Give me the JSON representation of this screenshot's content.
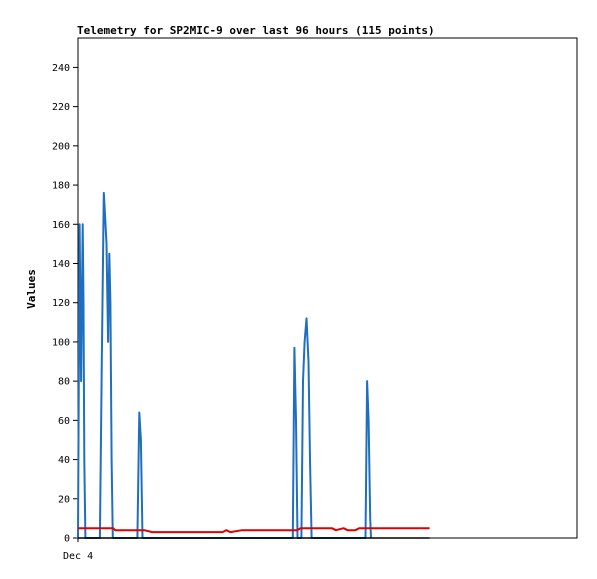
{
  "chart_data": {
    "type": "line",
    "title": "Telemetry for SP2MIC-9 over last 96 hours (115 points)",
    "ylabel": "Values",
    "xlabel": "",
    "x_tick_labels": [
      "Dec 4"
    ],
    "ylim": [
      0,
      255
    ],
    "y_ticks": [
      0,
      20,
      40,
      60,
      80,
      100,
      120,
      140,
      160,
      180,
      200,
      220,
      240
    ],
    "xlim": [
      0,
      96
    ],
    "x_unit": "hours",
    "grid": false,
    "legend": "none",
    "series": [
      {
        "color": "#1f6fc0",
        "points": [
          [
            0.0,
            0
          ],
          [
            0.4,
            160
          ],
          [
            0.8,
            80
          ],
          [
            1.2,
            160
          ],
          [
            1.4,
            120
          ],
          [
            1.6,
            40
          ],
          [
            1.9,
            0
          ],
          [
            5.6,
            0
          ],
          [
            6.1,
            90
          ],
          [
            6.6,
            176
          ],
          [
            6.9,
            165
          ],
          [
            7.3,
            150
          ],
          [
            7.7,
            100
          ],
          [
            8.0,
            145
          ],
          [
            8.3,
            120
          ],
          [
            8.6,
            40
          ],
          [
            8.9,
            0
          ],
          [
            15.2,
            0
          ],
          [
            15.7,
            64
          ],
          [
            16.1,
            50
          ],
          [
            16.5,
            0
          ],
          [
            55.0,
            0
          ],
          [
            55.4,
            97
          ],
          [
            55.8,
            60
          ],
          [
            56.2,
            0
          ],
          [
            57.2,
            0
          ],
          [
            57.6,
            80
          ],
          [
            58.0,
            100
          ],
          [
            58.5,
            112
          ],
          [
            59.0,
            90
          ],
          [
            59.4,
            40
          ],
          [
            59.8,
            0
          ],
          [
            73.6,
            0
          ],
          [
            74.0,
            80
          ],
          [
            74.4,
            60
          ],
          [
            74.8,
            10
          ],
          [
            75.0,
            0
          ]
        ]
      },
      {
        "color": "#e00000",
        "points": [
          [
            0.0,
            5
          ],
          [
            9.0,
            5
          ],
          [
            9.5,
            4
          ],
          [
            17.0,
            4
          ],
          [
            19.0,
            3
          ],
          [
            37.0,
            3
          ],
          [
            38.0,
            4
          ],
          [
            39.0,
            3
          ],
          [
            42.0,
            4
          ],
          [
            56.0,
            4
          ],
          [
            57.0,
            5
          ],
          [
            65.0,
            5
          ],
          [
            66.0,
            4
          ],
          [
            68.0,
            5
          ],
          [
            69.0,
            4
          ],
          [
            71.0,
            4
          ],
          [
            72.0,
            5
          ],
          [
            90.0,
            5
          ]
        ]
      },
      {
        "color": "#000000",
        "points": [
          [
            0.0,
            0
          ],
          [
            90.0,
            0
          ]
        ]
      }
    ]
  }
}
